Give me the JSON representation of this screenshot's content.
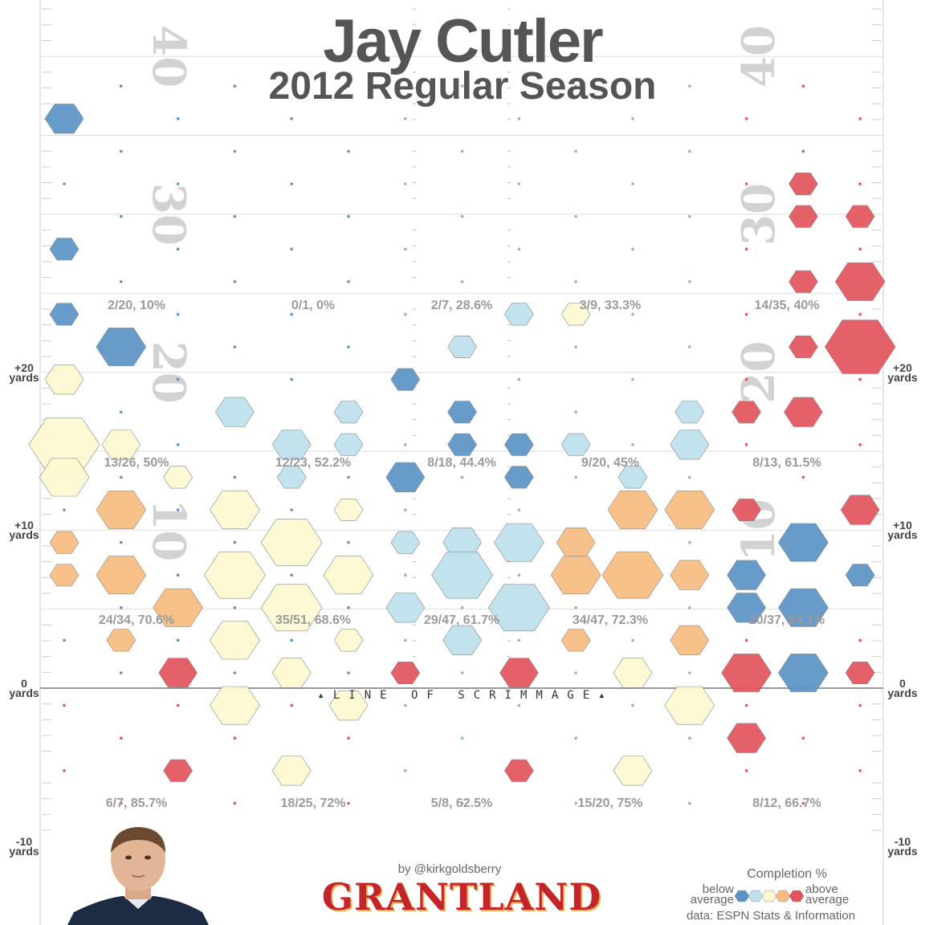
{
  "header": {
    "title": "Jay Cutler",
    "subtitle": "2012 Regular Season"
  },
  "axis": {
    "y_labels": [
      {
        "value": 20,
        "text": "+20",
        "unit": "yards"
      },
      {
        "value": 10,
        "text": "+10",
        "unit": "yards"
      },
      {
        "value": 0,
        "text": "0",
        "unit": "yards"
      },
      {
        "value": -10,
        "text": "-10",
        "unit": "yards"
      }
    ],
    "field_numbers": [
      "40",
      "30",
      "20",
      "10"
    ]
  },
  "field": {
    "line_of_scrimmage": "LINE OF SCRIMMAGE"
  },
  "chart_data": {
    "type": "heatmap",
    "title": "Jay Cutler",
    "subtitle": "2012 Regular Season",
    "ylim": [
      -10,
      43
    ],
    "zone_columns": [
      "left",
      "left-middle",
      "middle",
      "right-middle",
      "right"
    ],
    "zone_stats": [
      {
        "row": "20+ yards",
        "stats": [
          "2/20, 10%",
          "0/1, 0%",
          "2/7, 28.6%",
          "3/9, 33.3%",
          "14/35, 40%"
        ]
      },
      {
        "row": "10-20 yards",
        "stats": [
          "13/26, 50%",
          "12/23, 52.2%",
          "8/18, 44.4%",
          "9/20, 45%",
          "8/13, 61.5%"
        ]
      },
      {
        "row": "0-10 yards",
        "stats": [
          "24/34, 70.6%",
          "35/51, 68.6%",
          "29/47, 61.7%",
          "34/47, 72.3%",
          "20/37, 54.1%"
        ]
      },
      {
        "row": "behind line",
        "stats": [
          "6/7, 85.7%",
          "18/25, 72%",
          "5/8, 62.5%",
          "15/20, 75%",
          "8/12, 66.7%"
        ]
      }
    ],
    "legend": {
      "title": "Completion %",
      "low_label": "below average",
      "high_label": "above average",
      "colors": [
        "#5a93c4",
        "#bde0ec",
        "#fdf8d0",
        "#f8bc80",
        "#e3545c"
      ]
    }
  },
  "footer": {
    "byline": "by @kirkgoldsberry",
    "brand": "GRANTLAND",
    "source": "data: ESPN Stats & Information"
  }
}
